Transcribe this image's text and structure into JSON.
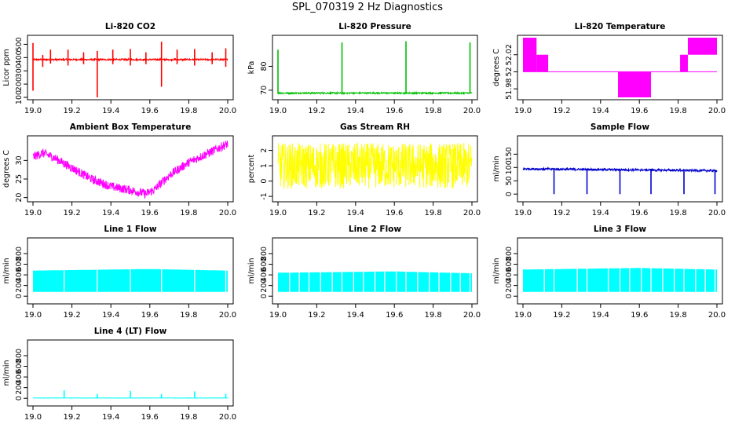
{
  "page": {
    "title": "SPL_070319  2 Hz Diagnostics"
  },
  "chart_data": [
    {
      "type": "line",
      "title": "Li-820 CO2",
      "ylabel": "Licor ppm",
      "color": "#ff0000",
      "xlim": [
        19.0,
        20.0
      ],
      "ylim": [
        100,
        550
      ],
      "yticks": [
        100,
        200,
        300,
        400,
        500
      ],
      "xticks": [
        19.0,
        19.2,
        19.4,
        19.6,
        19.8,
        20.0
      ],
      "series": [
        {
          "baseline": 385,
          "noise": 6,
          "spikes": [
            {
              "x": 19.0,
              "lo": 150,
              "hi": 510
            },
            {
              "x": 19.05,
              "lo": 330,
              "hi": 420
            },
            {
              "x": 19.09,
              "lo": 355,
              "hi": 460
            },
            {
              "x": 19.18,
              "lo": 340,
              "hi": 460
            },
            {
              "x": 19.26,
              "lo": 350,
              "hi": 440
            },
            {
              "x": 19.33,
              "lo": 100,
              "hi": 450
            },
            {
              "x": 19.41,
              "lo": 350,
              "hi": 460
            },
            {
              "x": 19.5,
              "lo": 340,
              "hi": 465
            },
            {
              "x": 19.58,
              "lo": 350,
              "hi": 440
            },
            {
              "x": 19.66,
              "lo": 180,
              "hi": 520
            },
            {
              "x": 19.74,
              "lo": 350,
              "hi": 460
            },
            {
              "x": 19.83,
              "lo": 340,
              "hi": 465
            },
            {
              "x": 19.92,
              "lo": 350,
              "hi": 440
            },
            {
              "x": 19.99,
              "lo": 330,
              "hi": 470
            }
          ]
        }
      ]
    },
    {
      "type": "line",
      "title": "Li-820 Pressure",
      "ylabel": "kPa",
      "color": "#00c000",
      "xlim": [
        19.0,
        20.0
      ],
      "ylim": [
        67,
        92
      ],
      "yticks": [
        70,
        80
      ],
      "xticks": [
        19.0,
        19.2,
        19.4,
        19.6,
        19.8,
        20.0
      ],
      "series": [
        {
          "baseline": 68.8,
          "noise": 0.3,
          "spikes": [
            {
              "x": 19.0,
              "lo": 68.5,
              "hi": 87
            },
            {
              "x": 19.33,
              "lo": 68.5,
              "hi": 90
            },
            {
              "x": 19.66,
              "lo": 68.5,
              "hi": 90.5
            },
            {
              "x": 19.99,
              "lo": 68.5,
              "hi": 90
            }
          ]
        }
      ]
    },
    {
      "type": "line",
      "title": "Li-820 Temperature",
      "ylabel": "degrees C",
      "color": "#ff00ff",
      "xlim": [
        19.0,
        20.0
      ],
      "ylim": [
        51.97,
        52.04
      ],
      "yticks": [
        51.98,
        52.0,
        52.02
      ],
      "xticks": [
        19.0,
        19.2,
        19.4,
        19.6,
        19.8,
        20.0
      ],
      "series": [
        {
          "baseline": 52.0,
          "bands": [
            {
              "x0": 19.0,
              "x1": 19.07,
              "lo": 52.0,
              "hi": 52.04
            },
            {
              "x0": 19.07,
              "x1": 19.13,
              "lo": 52.0,
              "hi": 52.02
            },
            {
              "x0": 19.49,
              "x1": 19.66,
              "lo": 51.97,
              "hi": 52.0
            },
            {
              "x0": 19.81,
              "x1": 19.85,
              "lo": 52.0,
              "hi": 52.02
            },
            {
              "x0": 19.85,
              "x1": 20.0,
              "lo": 52.02,
              "hi": 52.04
            }
          ]
        }
      ]
    },
    {
      "type": "line",
      "title": "Ambient Box Temperature",
      "ylabel": "degrees C",
      "color": "#ff00ff",
      "xlim": [
        19.0,
        20.0
      ],
      "ylim": [
        19.5,
        36
      ],
      "yticks": [
        20,
        25,
        30
      ],
      "xticks": [
        19.0,
        19.2,
        19.4,
        19.6,
        19.8,
        20.0
      ],
      "series": [
        {
          "curve": [
            [
              19.0,
              31
            ],
            [
              19.05,
              32
            ],
            [
              19.1,
              31
            ],
            [
              19.2,
              28
            ],
            [
              19.3,
              25
            ],
            [
              19.4,
              23
            ],
            [
              19.5,
              22
            ],
            [
              19.58,
              21
            ],
            [
              19.62,
              22
            ],
            [
              19.7,
              26
            ],
            [
              19.8,
              29.5
            ],
            [
              19.9,
              32
            ],
            [
              20.0,
              34.5
            ]
          ],
          "noise": 1.2
        }
      ]
    },
    {
      "type": "line",
      "title": "Gas Stream RH",
      "ylabel": "percent",
      "color": "#ffff00",
      "xlim": [
        19.0,
        20.0
      ],
      "ylim": [
        -1.2,
        2.8
      ],
      "yticks": [
        -1,
        0,
        1,
        2
      ],
      "xticks": [
        19.0,
        19.2,
        19.4,
        19.6,
        19.8,
        20.0
      ],
      "series": [
        {
          "baseline": 1.0,
          "noise": 1.5
        }
      ]
    },
    {
      "type": "line",
      "title": "Sample Flow",
      "ylabel": "ml/min",
      "color": "#0000cc",
      "xlim": [
        19.0,
        20.0
      ],
      "ylim": [
        -20,
        210
      ],
      "yticks": [
        0,
        50,
        100,
        150
      ],
      "xticks": [
        19.0,
        19.2,
        19.4,
        19.6,
        19.8,
        20.0
      ],
      "series": [
        {
          "curve": [
            [
              19.0,
              95
            ],
            [
              20.0,
              88
            ]
          ],
          "noise": 4,
          "spikes": [
            {
              "x": 19.16,
              "lo": 0,
              "hi": 97
            },
            {
              "x": 19.33,
              "lo": 0,
              "hi": 95
            },
            {
              "x": 19.5,
              "lo": 0,
              "hi": 94
            },
            {
              "x": 19.66,
              "lo": 0,
              "hi": 95
            },
            {
              "x": 19.83,
              "lo": 0,
              "hi": 93
            },
            {
              "x": 19.99,
              "lo": 0,
              "hi": 92
            }
          ]
        }
      ]
    },
    {
      "type": "area",
      "title": "Line 1 Flow",
      "ylabel": "ml/min",
      "color": "#00ffff",
      "xlim": [
        19.0,
        20.0
      ],
      "ylim": [
        -100,
        1050
      ],
      "yticks": [
        0,
        200,
        400,
        600,
        800
      ],
      "xticks": [
        19.0,
        19.2,
        19.4,
        19.6,
        19.8,
        20.0
      ],
      "series": [
        {
          "lo": 80,
          "hi": [
            [
              19.0,
              480
            ],
            [
              19.6,
              510
            ],
            [
              20.0,
              480
            ]
          ],
          "gaps": [
            19.16,
            19.33,
            19.5,
            19.66,
            19.83,
            19.99
          ]
        }
      ]
    },
    {
      "type": "area",
      "title": "Line 2 Flow",
      "ylabel": "ml/min",
      "color": "#00ffff",
      "xlim": [
        19.0,
        20.0
      ],
      "ylim": [
        -100,
        1050
      ],
      "yticks": [
        0,
        200,
        400,
        600,
        800
      ],
      "xticks": [
        19.0,
        19.2,
        19.4,
        19.6,
        19.8,
        20.0
      ],
      "series": [
        {
          "lo": 80,
          "hi": [
            [
              19.0,
              440
            ],
            [
              19.6,
              465
            ],
            [
              20.0,
              430
            ]
          ],
          "gaps": [
            19.06,
            19.11,
            19.16,
            19.22,
            19.28,
            19.33,
            19.39,
            19.44,
            19.5,
            19.55,
            19.61,
            19.66,
            19.72,
            19.78,
            19.83,
            19.89,
            19.94,
            19.99
          ]
        }
      ]
    },
    {
      "type": "area",
      "title": "Line 3 Flow",
      "ylabel": "ml/min",
      "color": "#00ffff",
      "xlim": [
        19.0,
        20.0
      ],
      "ylim": [
        -100,
        1050
      ],
      "yticks": [
        0,
        200,
        400,
        600,
        800
      ],
      "xticks": [
        19.0,
        19.2,
        19.4,
        19.6,
        19.8,
        20.0
      ],
      "series": [
        {
          "lo": 80,
          "hi": [
            [
              19.0,
              500
            ],
            [
              19.6,
              530
            ],
            [
              20.0,
              500
            ]
          ],
          "gaps": [
            19.11,
            19.16,
            19.28,
            19.33,
            19.44,
            19.5,
            19.55,
            19.61,
            19.66,
            19.72,
            19.78,
            19.83,
            19.89,
            19.94,
            19.99
          ]
        }
      ]
    },
    {
      "type": "line",
      "title": "Line 4 (LT) Flow",
      "ylabel": "ml/min",
      "color": "#00ffff",
      "xlim": [
        19.0,
        20.0
      ],
      "ylim": [
        -100,
        1050
      ],
      "yticks": [
        0,
        200,
        400,
        600,
        800
      ],
      "xticks": [
        19.0,
        19.2,
        19.4,
        19.6,
        19.8,
        20.0
      ],
      "series": [
        {
          "baseline": 5,
          "noise": 2,
          "spikes": [
            {
              "x": 19.16,
              "lo": 0,
              "hi": 150
            },
            {
              "x": 19.33,
              "lo": 0,
              "hi": 80
            },
            {
              "x": 19.5,
              "lo": 0,
              "hi": 140
            },
            {
              "x": 19.66,
              "lo": 0,
              "hi": 80
            },
            {
              "x": 19.83,
              "lo": 0,
              "hi": 130
            },
            {
              "x": 19.99,
              "lo": 0,
              "hi": 80
            }
          ]
        }
      ]
    }
  ]
}
